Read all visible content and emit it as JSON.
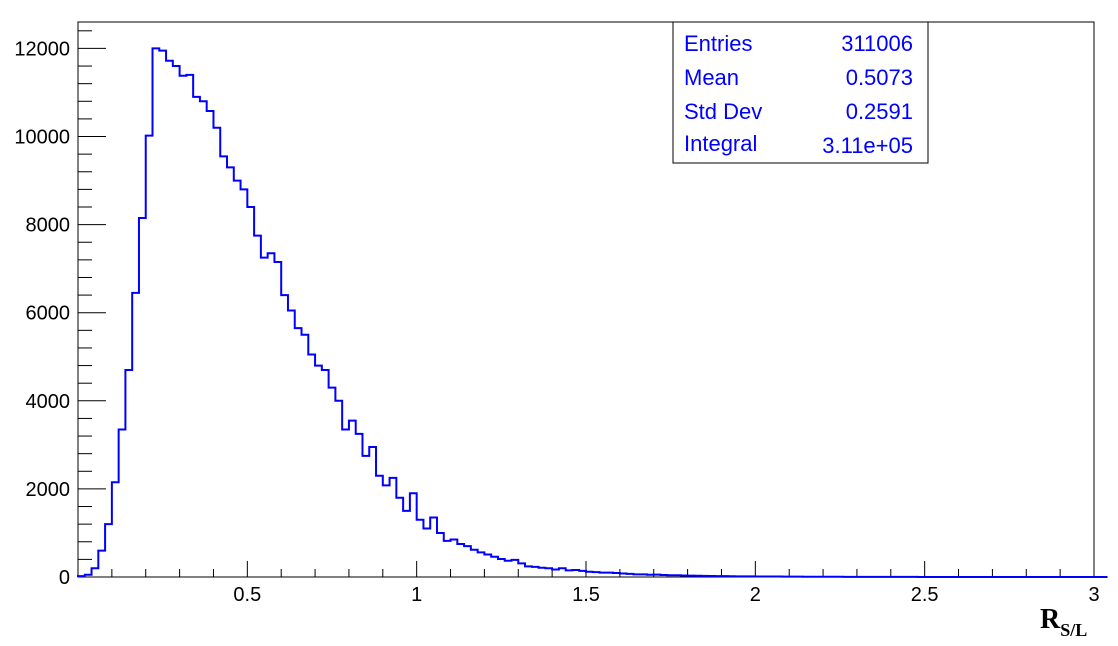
{
  "chart_data": {
    "type": "bar",
    "subtype": "histogram-step",
    "title": "",
    "xlabel": "R",
    "xlabel_sub": "S/L",
    "ylabel": "",
    "xlim": [
      0,
      3
    ],
    "ylim": [
      0,
      12600
    ],
    "bin_width": 0.02,
    "x_ticks": [
      0.5,
      1,
      1.5,
      2,
      2.5,
      3
    ],
    "x_tick_labels": [
      "0.5",
      "1",
      "1.5",
      "2",
      "2.5",
      "3"
    ],
    "y_ticks": [
      0,
      2000,
      4000,
      6000,
      8000,
      10000,
      12000
    ],
    "y_tick_labels": [
      "0",
      "2000",
      "4000",
      "6000",
      "8000",
      "10000",
      "12000"
    ],
    "grid": false,
    "line_color": "#0000ff",
    "series": [
      {
        "values": [
          20,
          50,
          200,
          600,
          1200,
          2150,
          3350,
          4700,
          6450,
          8150,
          10020,
          12000,
          11950,
          11720,
          11600,
          11380,
          11400,
          10900,
          10800,
          10580,
          10200,
          9550,
          9300,
          9000,
          8800,
          8400,
          7750,
          7250,
          7350,
          7150,
          6400,
          6050,
          5650,
          5500,
          5050,
          4800,
          4700,
          4300,
          4000,
          3350,
          3550,
          3250,
          2750,
          2950,
          2300,
          2080,
          2250,
          1800,
          1500,
          1900,
          1300,
          1100,
          1350,
          1000,
          820,
          850,
          750,
          700,
          620,
          560,
          510,
          460,
          410,
          370,
          390,
          310,
          240,
          230,
          210,
          200,
          170,
          200,
          150,
          160,
          140,
          120,
          110,
          100,
          100,
          90,
          80,
          70,
          60,
          60,
          50,
          55,
          45,
          40,
          40,
          35,
          30,
          28,
          25,
          22,
          20,
          20,
          18,
          15,
          15,
          14,
          12,
          12,
          10,
          10,
          9,
          8,
          8,
          7,
          6,
          6,
          5,
          5,
          5,
          4,
          4,
          4,
          3,
          3,
          3,
          2,
          2,
          2,
          2,
          2,
          1,
          1,
          1,
          1,
          1,
          1,
          1,
          1,
          1,
          0,
          0,
          0,
          0,
          0,
          0,
          0,
          0,
          0,
          0,
          0,
          0,
          0,
          0,
          0,
          0,
          0,
          0,
          0
        ]
      }
    ]
  },
  "stats": {
    "color": "#0000ff",
    "rows": [
      {
        "label": "Entries",
        "value": "311006"
      },
      {
        "label": "Mean",
        "value": "0.5073"
      },
      {
        "label": "Std Dev",
        "value": "0.2591"
      },
      {
        "label": "Integral",
        "value": "3.11e+05"
      }
    ]
  }
}
